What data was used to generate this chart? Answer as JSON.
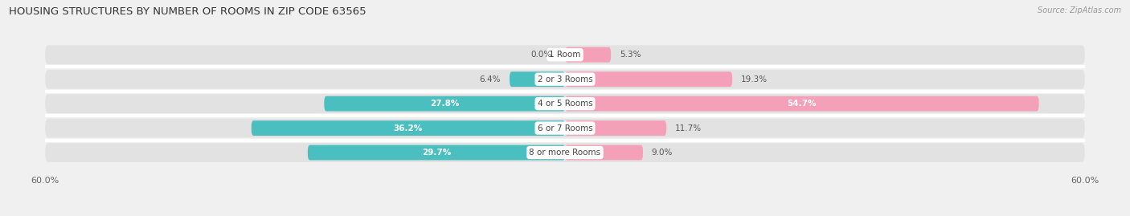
{
  "title": "HOUSING STRUCTURES BY NUMBER OF ROOMS IN ZIP CODE 63565",
  "source": "Source: ZipAtlas.com",
  "categories": [
    "1 Room",
    "2 or 3 Rooms",
    "4 or 5 Rooms",
    "6 or 7 Rooms",
    "8 or more Rooms"
  ],
  "owner_values": [
    0.0,
    6.4,
    27.8,
    36.2,
    29.7
  ],
  "renter_values": [
    5.3,
    19.3,
    54.7,
    11.7,
    9.0
  ],
  "owner_color": "#4BBFBF",
  "renter_color": "#F4A0B8",
  "xlim": 60.0,
  "background_color": "#f0f0f0",
  "bar_bg_color": "#e2e2e2",
  "title_fontsize": 9.5,
  "label_fontsize": 7.5,
  "cat_fontsize": 7.5,
  "axis_label_fontsize": 8
}
